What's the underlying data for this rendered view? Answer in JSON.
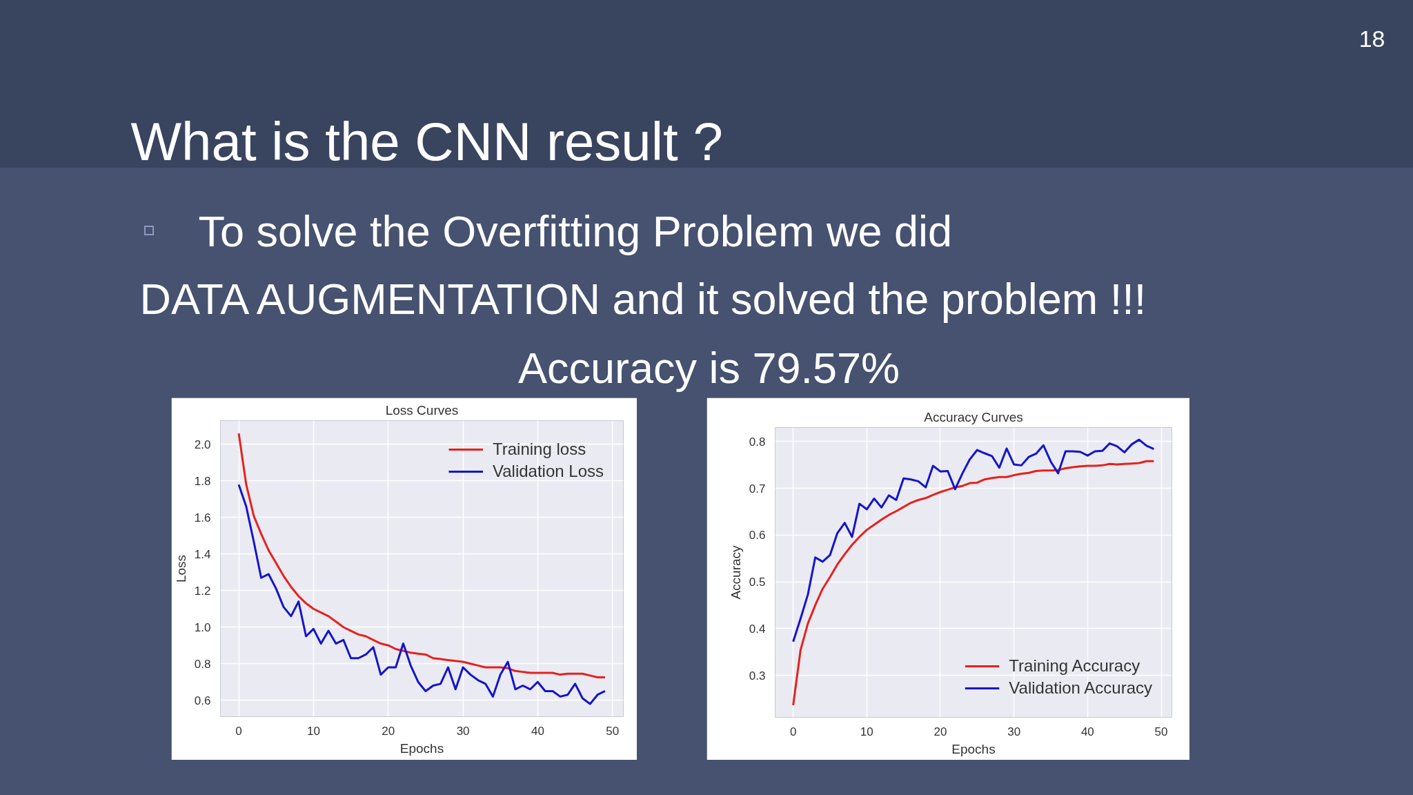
{
  "chart_data": [
    {
      "type": "other",
      "title": "What is the CNN result ?",
      "annotations": [
        "To solve the Overfitting Problem we did",
        "DATA AUGMENTATION and it solved the problem !!!",
        "Accuracy is 79.57%",
        "18"
      ]
    },
    {
      "type": "line",
      "title": "Loss Curves",
      "xlabel": "Epochs",
      "ylabel": "Loss",
      "x": [
        0,
        1,
        2,
        3,
        4,
        5,
        6,
        7,
        8,
        9,
        10,
        11,
        12,
        13,
        14,
        15,
        16,
        17,
        18,
        19,
        20,
        21,
        22,
        23,
        24,
        25,
        26,
        27,
        28,
        29,
        30,
        31,
        32,
        33,
        34,
        35,
        36,
        37,
        38,
        39,
        40,
        41,
        42,
        43,
        44,
        45,
        46,
        47,
        48,
        49
      ],
      "series": [
        {
          "name": "Training loss",
          "color": "#e8201c",
          "values": [
            2.06,
            1.78,
            1.61,
            1.51,
            1.42,
            1.35,
            1.28,
            1.22,
            1.17,
            1.13,
            1.1,
            1.08,
            1.06,
            1.03,
            1.0,
            0.98,
            0.96,
            0.95,
            0.93,
            0.91,
            0.9,
            0.88,
            0.87,
            0.86,
            0.855,
            0.85,
            0.83,
            0.825,
            0.82,
            0.815,
            0.81,
            0.8,
            0.79,
            0.78,
            0.78,
            0.78,
            0.775,
            0.76,
            0.755,
            0.75,
            0.75,
            0.75,
            0.75,
            0.74,
            0.745,
            0.745,
            0.745,
            0.735,
            0.725,
            0.725
          ]
        },
        {
          "name": "Validation Loss",
          "color": "#1414cc",
          "values": [
            1.78,
            1.66,
            1.47,
            1.27,
            1.29,
            1.21,
            1.11,
            1.06,
            1.14,
            0.95,
            0.99,
            0.91,
            0.98,
            0.91,
            0.93,
            0.83,
            0.83,
            0.85,
            0.89,
            0.74,
            0.78,
            0.78,
            0.91,
            0.79,
            0.7,
            0.65,
            0.68,
            0.69,
            0.78,
            0.66,
            0.78,
            0.74,
            0.71,
            0.69,
            0.62,
            0.74,
            0.81,
            0.66,
            0.68,
            0.66,
            0.7,
            0.65,
            0.65,
            0.62,
            0.63,
            0.69,
            0.61,
            0.58,
            0.63,
            0.65
          ]
        }
      ],
      "xlim": [
        -2.45,
        51.45
      ],
      "ylim": [
        0.51,
        2.13
      ],
      "xticks": [
        0,
        10,
        20,
        30,
        40,
        50
      ],
      "yticks": [
        0.6,
        0.8,
        {
          "value": 1,
          "label": "1.0"
        },
        1.2,
        1.4,
        1.6,
        1.8,
        {
          "value": 2,
          "label": "2.0"
        }
      ],
      "grid": true,
      "legend": "top right"
    },
    {
      "type": "line",
      "title": "Accuracy Curves",
      "xlabel": "Epochs",
      "ylabel": "Accuracy",
      "x": [
        0,
        1,
        2,
        3,
        4,
        5,
        6,
        7,
        8,
        9,
        10,
        11,
        12,
        13,
        14,
        15,
        16,
        17,
        18,
        19,
        20,
        21,
        22,
        23,
        24,
        25,
        26,
        27,
        28,
        29,
        30,
        31,
        32,
        33,
        34,
        35,
        36,
        37,
        38,
        39,
        40,
        41,
        42,
        43,
        44,
        45,
        46,
        47,
        48,
        49
      ],
      "series": [
        {
          "name": "Training Accuracy",
          "color": "#e8201c",
          "values": [
            0.236,
            0.354,
            0.411,
            0.45,
            0.485,
            0.51,
            0.537,
            0.559,
            0.579,
            0.596,
            0.611,
            0.622,
            0.633,
            0.643,
            0.651,
            0.66,
            0.669,
            0.675,
            0.679,
            0.686,
            0.692,
            0.697,
            0.702,
            0.705,
            0.711,
            0.712,
            0.719,
            0.722,
            0.724,
            0.724,
            0.728,
            0.731,
            0.733,
            0.737,
            0.738,
            0.738,
            0.739,
            0.743,
            0.745,
            0.747,
            0.748,
            0.748,
            0.749,
            0.752,
            0.751,
            0.752,
            0.753,
            0.754,
            0.758,
            0.758
          ]
        },
        {
          "name": "Validation Accuracy",
          "color": "#1414cc",
          "values": [
            0.372,
            0.421,
            0.473,
            0.552,
            0.543,
            0.557,
            0.604,
            0.626,
            0.596,
            0.667,
            0.655,
            0.678,
            0.659,
            0.685,
            0.675,
            0.721,
            0.719,
            0.715,
            0.702,
            0.748,
            0.736,
            0.737,
            0.698,
            0.732,
            0.762,
            0.782,
            0.775,
            0.769,
            0.744,
            0.785,
            0.751,
            0.749,
            0.767,
            0.774,
            0.792,
            0.757,
            0.732,
            0.779,
            0.779,
            0.778,
            0.77,
            0.779,
            0.78,
            0.796,
            0.79,
            0.777,
            0.794,
            0.804,
            0.791,
            0.784
          ]
        }
      ],
      "xlim": [
        -2.45,
        51.45
      ],
      "ylim": [
        0.21,
        0.83
      ],
      "xticks": [
        0,
        10,
        20,
        30,
        40,
        50
      ],
      "yticks": [
        0.3,
        0.4,
        0.5,
        0.6,
        0.7,
        0.8
      ],
      "grid": true,
      "legend": "bottom right"
    }
  ]
}
